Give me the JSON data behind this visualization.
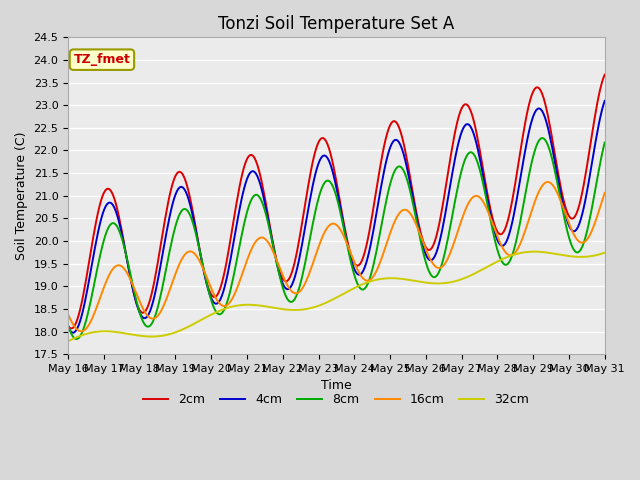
{
  "title": "Tonzi Soil Temperature Set A",
  "xlabel": "Time",
  "ylabel": "Soil Temperature (C)",
  "ylim": [
    17.5,
    24.5
  ],
  "xtick_labels": [
    "May 16",
    "May 17",
    "May 18",
    "May 19",
    "May 20",
    "May 21",
    "May 22",
    "May 23",
    "May 24",
    "May 25",
    "May 26",
    "May 27",
    "May 28",
    "May 29",
    "May 30",
    "May 31"
  ],
  "ytick_values": [
    17.5,
    18.0,
    18.5,
    19.0,
    19.5,
    20.0,
    20.5,
    21.0,
    21.5,
    22.0,
    22.5,
    23.0,
    23.5,
    24.0,
    24.5
  ],
  "legend_labels": [
    "2cm",
    "4cm",
    "8cm",
    "16cm",
    "32cm"
  ],
  "legend_colors": [
    "#dd0000",
    "#0000cc",
    "#00aa00",
    "#ff8800",
    "#cccc00"
  ],
  "annotation_text": "TZ_fmet",
  "annotation_color": "#cc0000",
  "annotation_bg": "#ffffcc",
  "fig_bg_color": "#d8d8d8",
  "plot_bg_color": "#ebebeb",
  "grid_color": "#ffffff",
  "title_fontsize": 12,
  "label_fontsize": 9,
  "tick_fontsize": 8,
  "legend_fontsize": 9,
  "line_width": 1.4
}
